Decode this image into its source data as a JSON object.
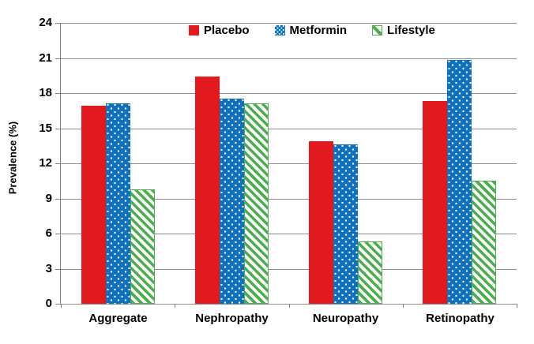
{
  "chart_data": {
    "type": "bar",
    "title": "",
    "categories": [
      "Aggregate",
      "Nephropathy",
      "Neuropathy",
      "Retinopathy"
    ],
    "series": [
      {
        "name": "Placebo",
        "pattern": "solid",
        "color": "#e2191d",
        "values": [
          16.9,
          19.4,
          13.9,
          17.3
        ]
      },
      {
        "name": "Metformin",
        "pattern": "dots",
        "color": "#0f71bc",
        "values": [
          17.1,
          17.5,
          13.6,
          20.8
        ]
      },
      {
        "name": "Lifestyle",
        "pattern": "diagonal-stripes",
        "color": "#4dae50",
        "values": [
          9.8,
          17.1,
          5.3,
          10.5
        ]
      }
    ],
    "xlabel": "",
    "ylabel": "Prevalence (%)",
    "ylim": [
      0,
      24
    ],
    "ytick_step": 3,
    "yticks": [
      0,
      3,
      6,
      9,
      12,
      15,
      18,
      21,
      24
    ],
    "grid": true,
    "legend_position": "top"
  },
  "colors": {
    "background": "#ffffff",
    "gridline": "#8c8c8c",
    "axis": "#7f7f7f",
    "text": "#000000"
  }
}
